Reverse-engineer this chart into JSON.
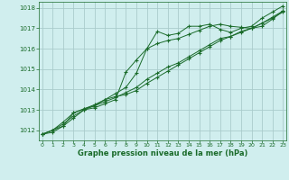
{
  "title": "Graphe pression niveau de la mer (hPa)",
  "bg_color": "#d0eeee",
  "grid_color": "#aacccc",
  "line_color": "#1a6b2a",
  "marker_color": "#1a6b2a",
  "xlim": [
    -0.3,
    23.3
  ],
  "ylim": [
    1011.5,
    1018.3
  ],
  "yticks": [
    1012,
    1013,
    1014,
    1015,
    1016,
    1017,
    1018
  ],
  "xticks": [
    0,
    1,
    2,
    3,
    4,
    5,
    6,
    7,
    8,
    9,
    10,
    11,
    12,
    13,
    14,
    15,
    16,
    17,
    18,
    19,
    20,
    21,
    22,
    23
  ],
  "series": [
    [
      1011.8,
      1011.9,
      1012.2,
      1012.85,
      1013.05,
      1013.25,
      1013.5,
      1013.8,
      1014.1,
      1014.8,
      1016.0,
      1016.85,
      1016.65,
      1016.75,
      1017.1,
      1017.1,
      1017.2,
      1016.95,
      1016.8,
      1017.0,
      1017.1,
      1017.5,
      1017.8,
      1018.1
    ],
    [
      1011.8,
      1012.0,
      1012.2,
      1012.6,
      1013.0,
      1013.1,
      1013.3,
      1013.5,
      1014.85,
      1015.45,
      1016.0,
      1016.25,
      1016.4,
      1016.5,
      1016.7,
      1016.9,
      1017.1,
      1017.2,
      1017.1,
      1017.05,
      1017.0,
      1017.1,
      1017.45,
      1017.85
    ],
    [
      1011.8,
      1012.0,
      1012.4,
      1012.85,
      1013.05,
      1013.2,
      1013.4,
      1013.6,
      1013.85,
      1014.1,
      1014.5,
      1014.8,
      1015.1,
      1015.3,
      1015.6,
      1015.9,
      1016.2,
      1016.5,
      1016.6,
      1016.8,
      1017.0,
      1017.25,
      1017.55,
      1017.85
    ],
    [
      1011.8,
      1012.0,
      1012.3,
      1012.7,
      1013.0,
      1013.2,
      1013.5,
      1013.65,
      1013.75,
      1013.95,
      1014.3,
      1014.6,
      1014.9,
      1015.2,
      1015.5,
      1015.8,
      1016.1,
      1016.4,
      1016.6,
      1016.85,
      1017.0,
      1017.25,
      1017.5,
      1017.8
    ]
  ]
}
